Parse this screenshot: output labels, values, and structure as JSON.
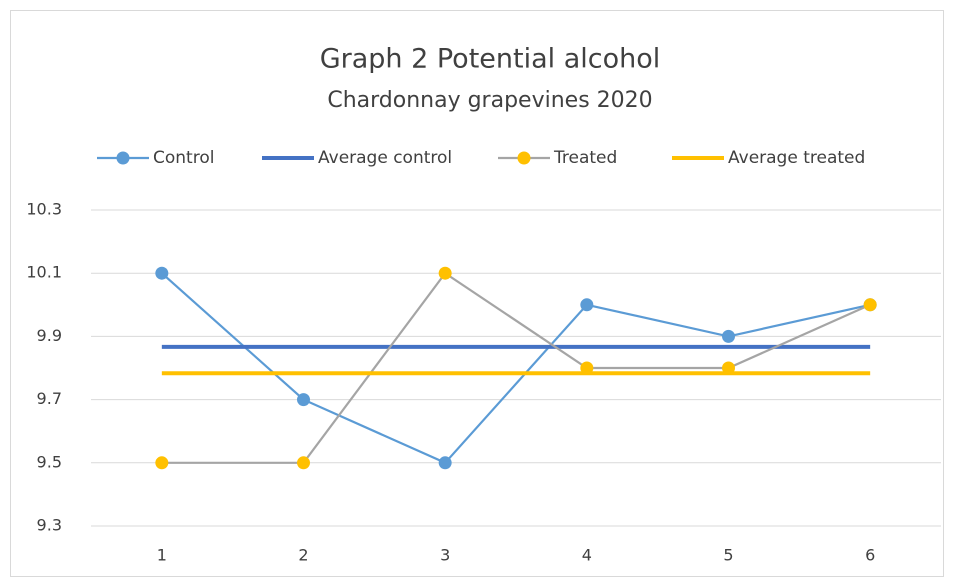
{
  "chart_data": {
    "type": "line",
    "title": "Graph 2  Potential alcohol",
    "subtitle": "Chardonnay grapevines 2020",
    "x": [
      1,
      2,
      3,
      4,
      5,
      6
    ],
    "series": [
      {
        "name": "Control",
        "color": "#5b9bd5",
        "marker_color": "#5b9bd5",
        "marker": true,
        "values": [
          10.1,
          9.7,
          9.5,
          10.0,
          9.9,
          10.0
        ]
      },
      {
        "name": "Average control",
        "color": "#4472c4",
        "marker": false,
        "values": [
          9.8667,
          9.8667,
          9.8667,
          9.8667,
          9.8667,
          9.8667
        ]
      },
      {
        "name": "Treated",
        "color": "#a5a5a5",
        "marker_color": "#ffc000",
        "marker": true,
        "values": [
          9.5,
          9.5,
          10.1,
          9.8,
          9.8,
          10.0
        ]
      },
      {
        "name": "Average treated",
        "color": "#ffc000",
        "marker": false,
        "values": [
          9.7833,
          9.7833,
          9.7833,
          9.7833,
          9.7833,
          9.7833
        ]
      }
    ],
    "ylim": [
      9.3,
      10.3
    ],
    "yticks": [
      9.3,
      9.5,
      9.7,
      9.9,
      10.1,
      10.3
    ],
    "grid": true,
    "legend": "top"
  }
}
